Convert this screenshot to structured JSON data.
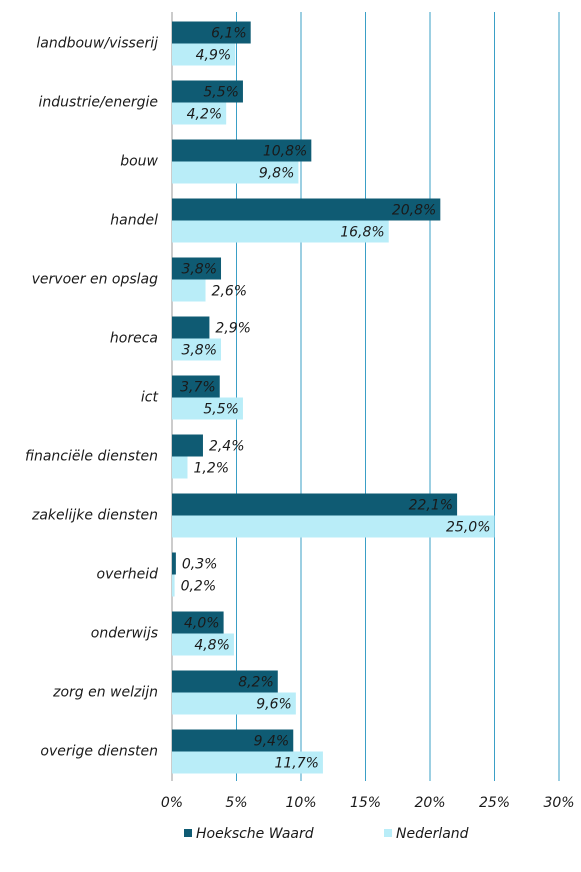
{
  "chart_data": {
    "type": "barh",
    "categories": [
      "landbouw/visserij",
      "industrie/energie",
      "bouw",
      "handel",
      "vervoer en opslag",
      "horeca",
      "ict",
      "financiële diensten",
      "zakelijke diensten",
      "overheid",
      "onderwijs",
      "zorg en welzijn",
      "overige diensten"
    ],
    "series": [
      {
        "name": "Hoeksche Waard",
        "color": "#0f5b73",
        "values": [
          6.1,
          5.5,
          10.8,
          20.8,
          3.8,
          2.9,
          3.7,
          2.4,
          22.1,
          0.3,
          4.0,
          8.2,
          9.4
        ],
        "value_labels": [
          "6,1%",
          "5,5%",
          "10,8%",
          "20,8%",
          "3,8%",
          "2,9%",
          "3,7%",
          "2,4%",
          "22,1%",
          "0,3%",
          "4,0%",
          "8,2%",
          "9,4%"
        ]
      },
      {
        "name": "Nederland",
        "color": "#b9edf8",
        "values": [
          4.9,
          4.2,
          9.8,
          16.8,
          2.6,
          3.8,
          5.5,
          1.2,
          25.0,
          0.2,
          4.8,
          9.6,
          11.7
        ],
        "value_labels": [
          "4,9%",
          "4,2%",
          "9,8%",
          "16,8%",
          "2,6%",
          "3,8%",
          "5,5%",
          "1,2%",
          "25,0%",
          "0,2%",
          "4,8%",
          "9,6%",
          "11,7%"
        ]
      }
    ],
    "xlim": [
      0,
      30
    ],
    "xticks": [
      {
        "value": 0,
        "label": "0%"
      },
      {
        "value": 5,
        "label": "5%"
      },
      {
        "value": 10,
        "label": "10%"
      },
      {
        "value": 15,
        "label": "15%"
      },
      {
        "value": 20,
        "label": "20%"
      },
      {
        "value": 25,
        "label": "25%"
      },
      {
        "value": 30,
        "label": "30%"
      }
    ],
    "grid": true,
    "legend": "bottom"
  }
}
